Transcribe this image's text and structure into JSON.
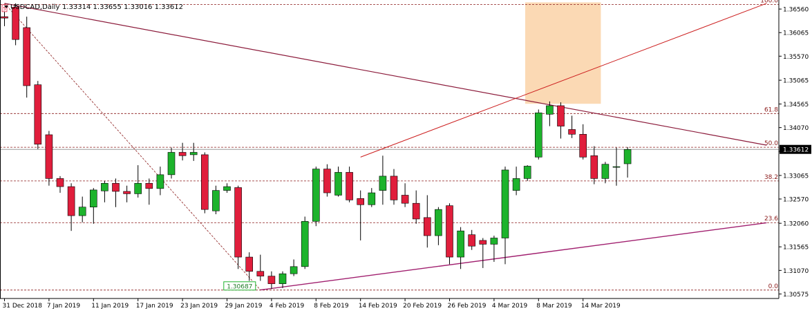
{
  "chart_data": {
    "type": "candlestick",
    "symbol": "USDCAD",
    "timeframe": "Daily",
    "header": {
      "title": "USDCAD,Daily",
      "ohlc": "1.33314 1.33655 1.33016 1.33612"
    },
    "current_price": 1.33612,
    "current_price_label": "1.33612",
    "ylim": [
      1.3048,
      1.3675
    ],
    "y_ticks": [
      1.3656,
      1.36065,
      1.3557,
      1.35065,
      1.34565,
      1.3407,
      1.3357,
      1.33065,
      1.3257,
      1.3206,
      1.31565,
      1.3107,
      1.30575
    ],
    "y_tick_labels": [
      "1.36560",
      "1.36065",
      "1.35570",
      "1.35065",
      "1.34565",
      "1.34070",
      "1.33570",
      "1.33065",
      "1.32570",
      "1.32060",
      "1.31565",
      "1.31070",
      "1.30575"
    ],
    "x_tick_labels": [
      {
        "label": "31 Dec 2018",
        "index": 0
      },
      {
        "label": "7 Jan 2019",
        "index": 4
      },
      {
        "label": "11 Jan 2019",
        "index": 8
      },
      {
        "label": "17 Jan 2019",
        "index": 12
      },
      {
        "label": "23 Jan 2019",
        "index": 16
      },
      {
        "label": "29 Jan 2019",
        "index": 20
      },
      {
        "label": "4 Feb 2019",
        "index": 24
      },
      {
        "label": "8 Feb 2019",
        "index": 28
      },
      {
        "label": "14 Feb 2019",
        "index": 32
      },
      {
        "label": "20 Feb 2019",
        "index": 36
      },
      {
        "label": "26 Feb 2019",
        "index": 40
      },
      {
        "label": "4 Mar 2019",
        "index": 44
      },
      {
        "label": "8 Mar 2019",
        "index": 48
      },
      {
        "label": "14 Mar 2019",
        "index": 52
      }
    ],
    "colors": {
      "bull": "#1db32c",
      "bear": "#e01e3c",
      "wick": "#000000",
      "trend": "#8b1a3a",
      "fib": "#8b1a1a",
      "channel": "#cc1d1d",
      "support": "#a01e6e",
      "box": "#fbd9b4",
      "grid": "#c8c8c8"
    },
    "candles": [
      {
        "o": 1.364,
        "h": 1.3652,
        "l": 1.362,
        "c": 1.3637
      },
      {
        "o": 1.366,
        "h": 1.3668,
        "l": 1.358,
        "c": 1.3592
      },
      {
        "o": 1.3617,
        "h": 1.364,
        "l": 1.347,
        "c": 1.3495
      },
      {
        "o": 1.3497,
        "h": 1.3505,
        "l": 1.3362,
        "c": 1.3372
      },
      {
        "o": 1.3392,
        "h": 1.34,
        "l": 1.3285,
        "c": 1.33
      },
      {
        "o": 1.33,
        "h": 1.3305,
        "l": 1.327,
        "c": 1.3283
      },
      {
        "o": 1.3283,
        "h": 1.329,
        "l": 1.319,
        "c": 1.3222
      },
      {
        "o": 1.3222,
        "h": 1.3262,
        "l": 1.3208,
        "c": 1.324
      },
      {
        "o": 1.324,
        "h": 1.328,
        "l": 1.3205,
        "c": 1.3276
      },
      {
        "o": 1.3274,
        "h": 1.3295,
        "l": 1.325,
        "c": 1.329
      },
      {
        "o": 1.329,
        "h": 1.33,
        "l": 1.324,
        "c": 1.3273
      },
      {
        "o": 1.3273,
        "h": 1.3285,
        "l": 1.325,
        "c": 1.3268
      },
      {
        "o": 1.3268,
        "h": 1.3328,
        "l": 1.326,
        "c": 1.329
      },
      {
        "o": 1.329,
        "h": 1.33,
        "l": 1.3245,
        "c": 1.3279
      },
      {
        "o": 1.3279,
        "h": 1.3325,
        "l": 1.3265,
        "c": 1.3308
      },
      {
        "o": 1.3308,
        "h": 1.3365,
        "l": 1.33,
        "c": 1.3355
      },
      {
        "o": 1.3355,
        "h": 1.3375,
        "l": 1.3338,
        "c": 1.3348
      },
      {
        "o": 1.335,
        "h": 1.3375,
        "l": 1.3337,
        "c": 1.3355
      },
      {
        "o": 1.335,
        "h": 1.3355,
        "l": 1.3227,
        "c": 1.3235
      },
      {
        "o": 1.3232,
        "h": 1.3285,
        "l": 1.3225,
        "c": 1.3275
      },
      {
        "o": 1.3275,
        "h": 1.329,
        "l": 1.327,
        "c": 1.3283
      },
      {
        "o": 1.3281,
        "h": 1.3285,
        "l": 1.311,
        "c": 1.3135
      },
      {
        "o": 1.3135,
        "h": 1.3145,
        "l": 1.3085,
        "c": 1.3105
      },
      {
        "o": 1.3105,
        "h": 1.314,
        "l": 1.3085,
        "c": 1.3095
      },
      {
        "o": 1.3095,
        "h": 1.3105,
        "l": 1.3068,
        "c": 1.3079
      },
      {
        "o": 1.3079,
        "h": 1.3105,
        "l": 1.307,
        "c": 1.31
      },
      {
        "o": 1.31,
        "h": 1.313,
        "l": 1.3095,
        "c": 1.3115
      },
      {
        "o": 1.3115,
        "h": 1.322,
        "l": 1.311,
        "c": 1.321
      },
      {
        "o": 1.321,
        "h": 1.3325,
        "l": 1.32,
        "c": 1.332
      },
      {
        "o": 1.332,
        "h": 1.333,
        "l": 1.3262,
        "c": 1.327
      },
      {
        "o": 1.3265,
        "h": 1.3325,
        "l": 1.3262,
        "c": 1.3313
      },
      {
        "o": 1.3313,
        "h": 1.3325,
        "l": 1.325,
        "c": 1.3255
      },
      {
        "o": 1.3258,
        "h": 1.3275,
        "l": 1.317,
        "c": 1.3245
      },
      {
        "o": 1.3245,
        "h": 1.328,
        "l": 1.324,
        "c": 1.327
      },
      {
        "o": 1.3275,
        "h": 1.3348,
        "l": 1.3245,
        "c": 1.3305
      },
      {
        "o": 1.3305,
        "h": 1.332,
        "l": 1.3245,
        "c": 1.3255
      },
      {
        "o": 1.3265,
        "h": 1.329,
        "l": 1.324,
        "c": 1.3248
      },
      {
        "o": 1.3248,
        "h": 1.3275,
        "l": 1.3205,
        "c": 1.3215
      },
      {
        "o": 1.3218,
        "h": 1.3265,
        "l": 1.3155,
        "c": 1.318
      },
      {
        "o": 1.318,
        "h": 1.324,
        "l": 1.316,
        "c": 1.3235
      },
      {
        "o": 1.3243,
        "h": 1.3248,
        "l": 1.312,
        "c": 1.3135
      },
      {
        "o": 1.3135,
        "h": 1.3198,
        "l": 1.311,
        "c": 1.319
      },
      {
        "o": 1.3182,
        "h": 1.3192,
        "l": 1.315,
        "c": 1.3158
      },
      {
        "o": 1.317,
        "h": 1.3175,
        "l": 1.3112,
        "c": 1.3162
      },
      {
        "o": 1.3162,
        "h": 1.318,
        "l": 1.3125,
        "c": 1.3175
      },
      {
        "o": 1.3175,
        "h": 1.3325,
        "l": 1.312,
        "c": 1.3318
      },
      {
        "o": 1.3275,
        "h": 1.3325,
        "l": 1.3265,
        "c": 1.33
      },
      {
        "o": 1.33,
        "h": 1.3328,
        "l": 1.3295,
        "c": 1.3326
      },
      {
        "o": 1.3345,
        "h": 1.3445,
        "l": 1.334,
        "c": 1.3438
      },
      {
        "o": 1.3435,
        "h": 1.3462,
        "l": 1.341,
        "c": 1.3453
      },
      {
        "o": 1.3453,
        "h": 1.346,
        "l": 1.3384,
        "c": 1.341
      },
      {
        "o": 1.3403,
        "h": 1.3432,
        "l": 1.3385,
        "c": 1.3393
      },
      {
        "o": 1.3393,
        "h": 1.3414,
        "l": 1.334,
        "c": 1.3345
      },
      {
        "o": 1.3348,
        "h": 1.3368,
        "l": 1.3288,
        "c": 1.33
      },
      {
        "o": 1.33,
        "h": 1.3335,
        "l": 1.329,
        "c": 1.333
      },
      {
        "o": 1.3325,
        "h": 1.3365,
        "l": 1.3285,
        "c": 1.3325
      },
      {
        "o": 1.3331,
        "h": 1.3366,
        "l": 1.3302,
        "c": 1.3361
      }
    ],
    "fibonacci": {
      "levels": [
        {
          "label": "100.0",
          "price": 1.36656
        },
        {
          "label": "61.8",
          "price": 1.34365
        },
        {
          "label": "50.0",
          "price": 1.33657
        },
        {
          "label": "38.2",
          "price": 1.32949
        },
        {
          "label": "23.6",
          "price": 1.32073
        },
        {
          "label": "0.0",
          "price": 1.30657
        }
      ]
    },
    "annotations": [
      {
        "type": "price_label",
        "text": "1.30687",
        "index": 23,
        "price": 1.30657
      },
      {
        "type": "marker",
        "text": "5",
        "index": 0,
        "price": 1.3652
      }
    ],
    "trendlines": [
      {
        "name": "descending-resistance",
        "from": {
          "i": 0,
          "p": 1.3668
        },
        "to": {
          "i": 68.5,
          "p": 1.337
        }
      },
      {
        "name": "fib-swing",
        "from": {
          "i": 0,
          "p": 1.3668
        },
        "to": {
          "i": 23,
          "p": 1.3066
        }
      },
      {
        "name": "ascending-support",
        "from": {
          "i": 23,
          "p": 1.3066
        },
        "to": {
          "i": 68.5,
          "p": 1.3207
        }
      },
      {
        "name": "channel-upper",
        "from": {
          "i": 32,
          "p": 1.3345
        },
        "to": {
          "i": 68.5,
          "p": 1.3668
        }
      }
    ],
    "zones": [
      {
        "name": "target-zone",
        "i0": 46.8,
        "i1": 53.6,
        "p0": 1.3457,
        "p1": 1.367
      }
    ]
  }
}
